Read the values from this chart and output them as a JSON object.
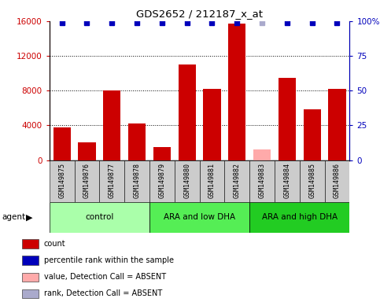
{
  "title": "GDS2652 / 212187_x_at",
  "samples": [
    "GSM149875",
    "GSM149876",
    "GSM149877",
    "GSM149878",
    "GSM149879",
    "GSM149880",
    "GSM149881",
    "GSM149882",
    "GSM149883",
    "GSM149884",
    "GSM149885",
    "GSM149886"
  ],
  "counts": [
    3800,
    2000,
    8000,
    4200,
    1500,
    11000,
    8200,
    15700,
    null,
    9500,
    5800,
    8200
  ],
  "absent_value": [
    null,
    null,
    null,
    null,
    null,
    null,
    null,
    null,
    1200,
    null,
    null,
    null
  ],
  "percentile_ranks": [
    99,
    99,
    99,
    99,
    99,
    99,
    99,
    99,
    null,
    99,
    99,
    99
  ],
  "absent_rank": [
    null,
    null,
    null,
    null,
    null,
    null,
    null,
    null,
    99,
    null,
    null,
    null
  ],
  "groups": [
    {
      "label": "control",
      "start": 0,
      "end": 3,
      "color": "#aaffaa"
    },
    {
      "label": "ARA and low DHA",
      "start": 4,
      "end": 7,
      "color": "#55ee55"
    },
    {
      "label": "ARA and high DHA",
      "start": 8,
      "end": 11,
      "color": "#22cc22"
    }
  ],
  "ylim_left": [
    0,
    16000
  ],
  "ylim_right": [
    0,
    100
  ],
  "yticks_left": [
    0,
    4000,
    8000,
    12000,
    16000
  ],
  "ytick_labels_left": [
    "0",
    "4000",
    "8000",
    "12000",
    "16000"
  ],
  "yticks_right": [
    0,
    25,
    50,
    75,
    100
  ],
  "ytick_labels_right": [
    "0",
    "25",
    "50",
    "75",
    "100%"
  ],
  "bar_color": "#cc0000",
  "absent_bar_color": "#ffaaaa",
  "rank_color": "#0000bb",
  "absent_rank_color": "#aaaacc",
  "bg_color": "#cccccc",
  "plot_bg": "#ffffff",
  "legend_items": [
    {
      "color": "#cc0000",
      "label": "count"
    },
    {
      "color": "#0000bb",
      "label": "percentile rank within the sample"
    },
    {
      "color": "#ffaaaa",
      "label": "value, Detection Call = ABSENT"
    },
    {
      "color": "#aaaacc",
      "label": "rank, Detection Call = ABSENT"
    }
  ]
}
